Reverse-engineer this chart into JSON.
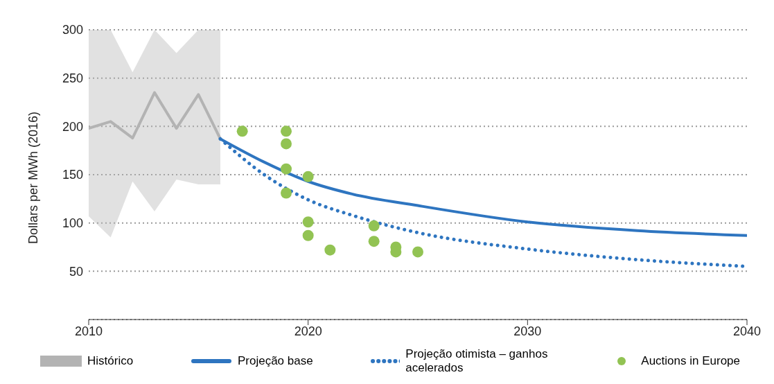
{
  "chart_data": {
    "type": "line",
    "ylabel": "Dollars per MWh (2016)",
    "xlim": [
      2010,
      2040
    ],
    "xticks": [
      2010,
      2020,
      2030,
      2040
    ],
    "ylim": [
      0,
      300
    ],
    "yticks": [
      {
        "value": 0,
        "label": null
      },
      50,
      100,
      150,
      200,
      250,
      300
    ],
    "grid": "y",
    "legend": "bottom",
    "series": [
      {
        "name": "Histórico",
        "color": "#b3b3b3",
        "line_style": "solid",
        "x": [
          2010,
          2011,
          2012,
          2013,
          2014,
          2015,
          2016
        ],
        "values": [
          198,
          205,
          188,
          235,
          198,
          233,
          187
        ],
        "lower": [
          107,
          85,
          143,
          112,
          145,
          140,
          140
        ],
        "upper": [
          300,
          300,
          256,
          300,
          276,
          300,
          300
        ]
      },
      {
        "name": "Projeção base",
        "color": "#2e75c0",
        "line_style": "solid",
        "x": [
          2016,
          2018,
          2020,
          2022,
          2025,
          2030,
          2035,
          2040
        ],
        "values": [
          187,
          163,
          143,
          130,
          118,
          101,
          92,
          87
        ]
      },
      {
        "name": "Projeção otimista – ganhos acelerados",
        "color": "#2e75c0",
        "line_style": "dotted",
        "x": [
          2016,
          2018,
          2020,
          2022,
          2025,
          2030,
          2035,
          2040
        ],
        "values": [
          187,
          150,
          124,
          108,
          90,
          73,
          62,
          55
        ]
      },
      {
        "name": "Auctions in Europe",
        "type": "scatter",
        "color": "#92c353",
        "marker": "circle",
        "x": [
          2017,
          2019,
          2019,
          2019,
          2019,
          2020,
          2020,
          2020,
          2021,
          2023,
          2023,
          2024,
          2024,
          2025
        ],
        "values": [
          195,
          195,
          182,
          156,
          131,
          148,
          101,
          87,
          72,
          97,
          81,
          75,
          70,
          70
        ]
      }
    ]
  }
}
